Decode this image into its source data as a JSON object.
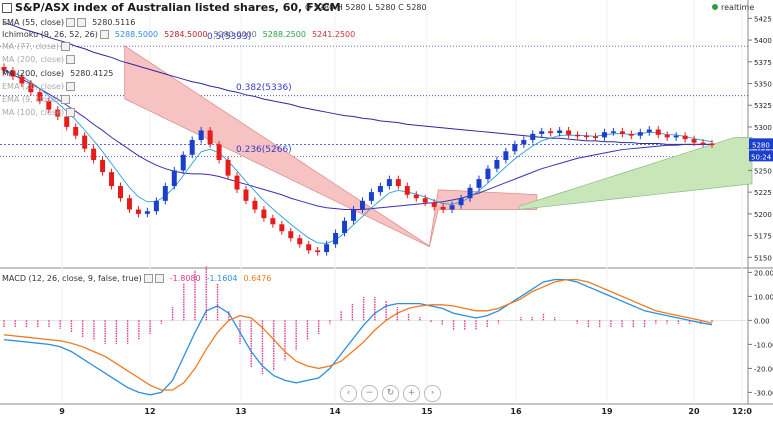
{
  "header": {
    "title": "S&P/ASX index of Australian listed shares, 60, FXCM",
    "ohlc": "O 5280 H 5280 L 5280 C 5280",
    "realtime": "realtime"
  },
  "legends": {
    "ema55": {
      "label": "EMA (55, close)",
      "value": "5280.5116"
    },
    "ichimoku": {
      "label": "Ichimoku (9, 26, 52, 26)",
      "v1": "5288.5000",
      "v2": "5284.5000",
      "v3": "5280.0000",
      "v4": "5288.2500",
      "v5": "5241.2500"
    },
    "ma_a": {
      "label": "MA (77, close)"
    },
    "ma_b": {
      "label": "MA (200, close)"
    },
    "ma200": {
      "label": "MA (200, close)",
      "value": "5280.4125"
    },
    "ema_a": {
      "label": "EMA (20, close)"
    },
    "ema9": {
      "label": "EMA (9, close)"
    },
    "ma100": {
      "label": "MA (100, close)"
    },
    "macd": {
      "label": "MACD (12, 26, close, 9, false, true)",
      "v1": "-1.8080",
      "v2": "-1.1604",
      "v3": "0.6476"
    }
  },
  "fib_labels": [
    "0.5(5393)",
    "0.382(5336)",
    "0.236(5266)"
  ],
  "price_badges": {
    "last": "5280",
    "countdown": "50:24"
  },
  "colors": {
    "up": "#1a3fcc",
    "down": "#e61b1b",
    "cloud_bull": "#c9e6b9",
    "cloud_bear": "#f7c2c2",
    "macd_line": "#2a8fe0",
    "signal_line": "#f07a22",
    "hist": "#e0338f"
  },
  "zoom_controls": [
    "left-arrow-icon",
    "zoom-out-icon",
    "reset-icon",
    "zoom-in-icon",
    "right-arrow-icon"
  ],
  "chart_data": [
    {
      "type": "line",
      "title": "S&P/ASX index of Australian listed shares, 60, FXCM",
      "x_ticks": [
        "9",
        "12",
        "13",
        "14",
        "15",
        "16",
        "19",
        "20",
        "12:0"
      ],
      "ylim": [
        5140,
        5430
      ],
      "y_ticks": [
        5150,
        5175,
        5200,
        5225,
        5250,
        5275,
        5300,
        5325,
        5350,
        5375,
        5400,
        5425
      ],
      "series": [
        {
          "name": "close",
          "values": [
            5365,
            5358,
            5350,
            5340,
            5330,
            5320,
            5312,
            5300,
            5290,
            5275,
            5262,
            5248,
            5232,
            5218,
            5205,
            5200,
            5203,
            5215,
            5232,
            5250,
            5268,
            5285,
            5296,
            5280,
            5262,
            5244,
            5228,
            5215,
            5205,
            5195,
            5188,
            5180,
            5172,
            5165,
            5158,
            5156,
            5165,
            5178,
            5192,
            5205,
            5215,
            5225,
            5232,
            5240,
            5232,
            5222,
            5218,
            5213,
            5208,
            5205,
            5210,
            5218,
            5230,
            5240,
            5252,
            5262,
            5272,
            5280,
            5285,
            5292,
            5295,
            5293,
            5296,
            5291,
            5290,
            5289,
            5288,
            5294,
            5295,
            5292,
            5290,
            5294,
            5297,
            5291,
            5288,
            5290,
            5286,
            5282,
            5281,
            5280
          ]
        },
        {
          "name": "MA (200, close)",
          "values": [
            5420,
            5417,
            5413,
            5410,
            5407,
            5403,
            5400,
            5397,
            5393,
            5390,
            5386,
            5383,
            5380,
            5376,
            5373,
            5370,
            5367,
            5364,
            5361,
            5358,
            5355,
            5352,
            5350,
            5347,
            5345,
            5342,
            5340,
            5337,
            5335,
            5332,
            5330,
            5328,
            5326,
            5323,
            5321,
            5319,
            5317,
            5315,
            5313,
            5312,
            5310,
            5309,
            5307,
            5306,
            5305,
            5303,
            5302,
            5301,
            5300,
            5299,
            5298,
            5297,
            5296,
            5295,
            5294,
            5293,
            5292,
            5291,
            5290,
            5289,
            5288,
            5287,
            5287,
            5286,
            5285,
            5284,
            5284,
            5283,
            5283,
            5282,
            5282,
            5281,
            5281,
            5281,
            5280,
            5280,
            5280,
            5280,
            5280,
            5280
          ]
        },
        {
          "name": "EMA (55, close)",
          "values": [
            5365,
            5360,
            5355,
            5350,
            5344,
            5338,
            5332,
            5325,
            5318,
            5311,
            5303,
            5296,
            5288,
            5281,
            5274,
            5267,
            5261,
            5256,
            5252,
            5249,
            5247,
            5246,
            5246,
            5245,
            5243,
            5240,
            5237,
            5234,
            5231,
            5228,
            5225,
            5222,
            5218,
            5215,
            5212,
            5209,
            5207,
            5206,
            5205,
            5205,
            5205,
            5206,
            5207,
            5208,
            5209,
            5210,
            5211,
            5212,
            5213,
            5214,
            5216,
            5218,
            5221,
            5224,
            5228,
            5232,
            5236,
            5240,
            5244,
            5248,
            5252,
            5255,
            5258,
            5261,
            5264,
            5266,
            5268,
            5270,
            5272,
            5274,
            5275,
            5276,
            5277,
            5278,
            5279,
            5279,
            5280,
            5280,
            5280,
            5280
          ]
        }
      ]
    },
    {
      "type": "line",
      "title": "MACD (12, 26, close, 9, false, true)",
      "x_ticks": [
        "9",
        "12",
        "13",
        "14",
        "15",
        "16",
        "19",
        "20",
        "12:0"
      ],
      "ylim": [
        -34,
        21
      ],
      "y_ticks": [
        -30,
        -20,
        -10,
        0,
        10,
        20
      ],
      "series": [
        {
          "name": "MACD",
          "values": [
            -8,
            -8.5,
            -9,
            -9.5,
            -10,
            -11,
            -13,
            -16,
            -19,
            -22,
            -25,
            -28,
            -30,
            -31,
            -30,
            -25,
            -15,
            -5,
            4,
            6,
            3,
            -5,
            -13,
            -19,
            -23,
            -25,
            -26,
            -25,
            -24,
            -20,
            -14,
            -8,
            -2,
            3,
            6,
            7,
            7,
            7,
            6,
            5,
            3,
            2,
            1,
            2,
            4,
            7,
            10,
            13,
            16,
            17,
            17,
            16,
            14,
            12,
            10,
            8,
            6,
            4,
            3,
            2,
            1,
            0,
            -1,
            -1.8
          ]
        },
        {
          "name": "Signal",
          "values": [
            -6,
            -6.5,
            -7,
            -7.5,
            -8,
            -8.5,
            -9.5,
            -11,
            -13,
            -15,
            -18,
            -21,
            -24,
            -27,
            -29,
            -29,
            -26,
            -20,
            -12,
            -5,
            0,
            2,
            1,
            -3,
            -8,
            -13,
            -17,
            -19,
            -20,
            -19,
            -17,
            -13,
            -9,
            -4,
            0,
            3,
            5,
            6,
            6.5,
            6.5,
            6,
            5,
            4,
            4,
            5,
            7,
            9,
            12,
            14,
            16,
            17,
            17,
            16,
            14,
            12,
            10,
            8,
            6,
            4,
            3,
            2,
            1,
            0,
            -1.2
          ]
        }
      ]
    }
  ]
}
